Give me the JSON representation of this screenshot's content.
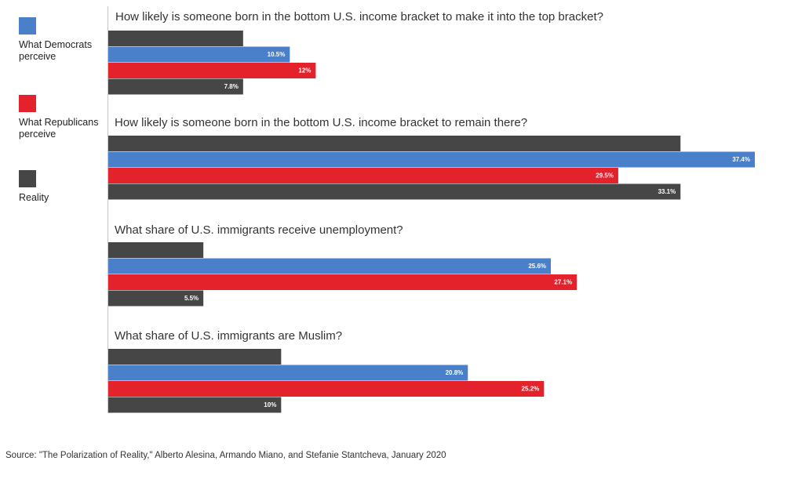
{
  "colors": {
    "democrats": "#4a80c9",
    "republicans": "#e3222b",
    "reality": "#464646",
    "axis": "#c8c8c8"
  },
  "legend": {
    "items": [
      {
        "label": "What Democrats perceive",
        "color": "#4a80c9",
        "key": "democrats"
      },
      {
        "label": "What Republicans perceive",
        "color": "#e3222b",
        "key": "republicans"
      },
      {
        "label": "Reality",
        "color": "#464646",
        "key": "reality"
      }
    ],
    "placement": "left"
  },
  "chart_data": {
    "type": "bar",
    "orientation": "horizontal",
    "grid": false,
    "xlim": [
      0,
      40
    ],
    "groups": [
      {
        "title": "How likely is someone born in the bottom U.S. income bracket to make it into the top bracket?",
        "bars": [
          {
            "series": "reality",
            "value": 7.8,
            "label": ""
          },
          {
            "series": "democrats",
            "value": 10.5,
            "label": "10.5%"
          },
          {
            "series": "republicans",
            "value": 12,
            "label": "12%"
          },
          {
            "series": "reality",
            "value": 7.8,
            "label": "7.8%"
          }
        ]
      },
      {
        "title": "How likely is someone born in the bottom U.S. income bracket to remain there?",
        "bars": [
          {
            "series": "reality",
            "value": 33.1,
            "label": ""
          },
          {
            "series": "democrats",
            "value": 37.4,
            "label": "37.4%"
          },
          {
            "series": "republicans",
            "value": 29.5,
            "label": "29.5%"
          },
          {
            "series": "reality",
            "value": 33.1,
            "label": "33.1%"
          }
        ]
      },
      {
        "title": "What share of U.S. immigrants receive unemployment?",
        "bars": [
          {
            "series": "reality",
            "value": 5.5,
            "label": ""
          },
          {
            "series": "democrats",
            "value": 25.6,
            "label": "25.6%"
          },
          {
            "series": "republicans",
            "value": 27.1,
            "label": "27.1%"
          },
          {
            "series": "reality",
            "value": 5.5,
            "label": "5.5%"
          }
        ]
      },
      {
        "title": "What share of U.S. immigrants are Muslim?",
        "bars": [
          {
            "series": "reality",
            "value": 10,
            "label": ""
          },
          {
            "series": "democrats",
            "value": 20.8,
            "label": "20.8%"
          },
          {
            "series": "republicans",
            "value": 25.2,
            "label": "25.2%"
          },
          {
            "series": "reality",
            "value": 10,
            "label": "10%"
          }
        ]
      }
    ]
  },
  "source": "Source: \"The Polarization of Reality,\" Alberto Alesina, Armando Miano, and Stefanie Stantcheva, January 2020"
}
